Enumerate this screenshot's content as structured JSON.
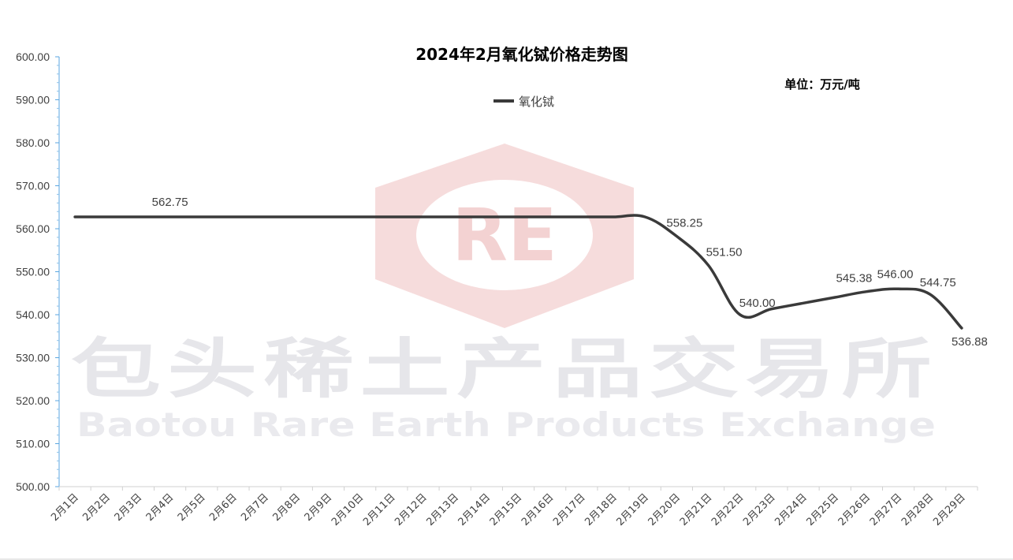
{
  "watermark": {
    "logo_text": "RE",
    "cn": "包头稀土产品交易所",
    "en": "Baotou Rare Earth Products Exchange",
    "logo_color": "#f4d8d8",
    "text_color": "#e6e6ea"
  },
  "chart_data": {
    "type": "line",
    "title": "2024年2月氧化铽价格走势图",
    "unit_label": "单位：万元/吨",
    "xlabel": "",
    "ylabel": "",
    "ylim": [
      500,
      600
    ],
    "yticks": [
      "600.00",
      "590.00",
      "580.00",
      "570.00",
      "560.00",
      "550.00",
      "540.00",
      "530.00",
      "520.00",
      "510.00",
      "500.00"
    ],
    "ytick_values": [
      600,
      590,
      580,
      570,
      560,
      550,
      540,
      530,
      520,
      510,
      500
    ],
    "categories": [
      "2月1日",
      "2月2日",
      "2月3日",
      "2月4日",
      "2月5日",
      "2月6日",
      "2月7日",
      "2月8日",
      "2月9日",
      "2月10日",
      "2月11日",
      "2月12日",
      "2月13日",
      "2月14日",
      "2月15日",
      "2月16日",
      "2月17日",
      "2月18日",
      "2月19日",
      "2月20日",
      "2月21日",
      "2月22日",
      "2月23日",
      "2月24日",
      "2月25日",
      "2月26日",
      "2月27日",
      "2月28日",
      "2月29日"
    ],
    "series": [
      {
        "name": "氧化铽",
        "color": "#3a3a3a",
        "values": [
          562.75,
          562.75,
          562.75,
          562.75,
          562.75,
          562.75,
          562.75,
          562.75,
          562.75,
          562.75,
          562.75,
          562.75,
          562.75,
          562.75,
          562.75,
          562.75,
          562.75,
          562.75,
          562.75,
          558.25,
          551.5,
          540.0,
          541.35,
          542.7,
          544.04,
          545.38,
          546.0,
          544.75,
          536.88
        ]
      }
    ],
    "data_labels": [
      {
        "index": 3,
        "text": "562.75"
      },
      {
        "index": 19,
        "text": "558.25"
      },
      {
        "index": 20,
        "text": "551.50"
      },
      {
        "index": 21,
        "text": "540.00"
      },
      {
        "index": 25,
        "text": "545.38"
      },
      {
        "index": 26,
        "text": "546.00"
      },
      {
        "index": 27,
        "text": "544.75"
      },
      {
        "index": 28,
        "text": "536.88"
      }
    ],
    "legend": "top-center",
    "grid": false
  }
}
